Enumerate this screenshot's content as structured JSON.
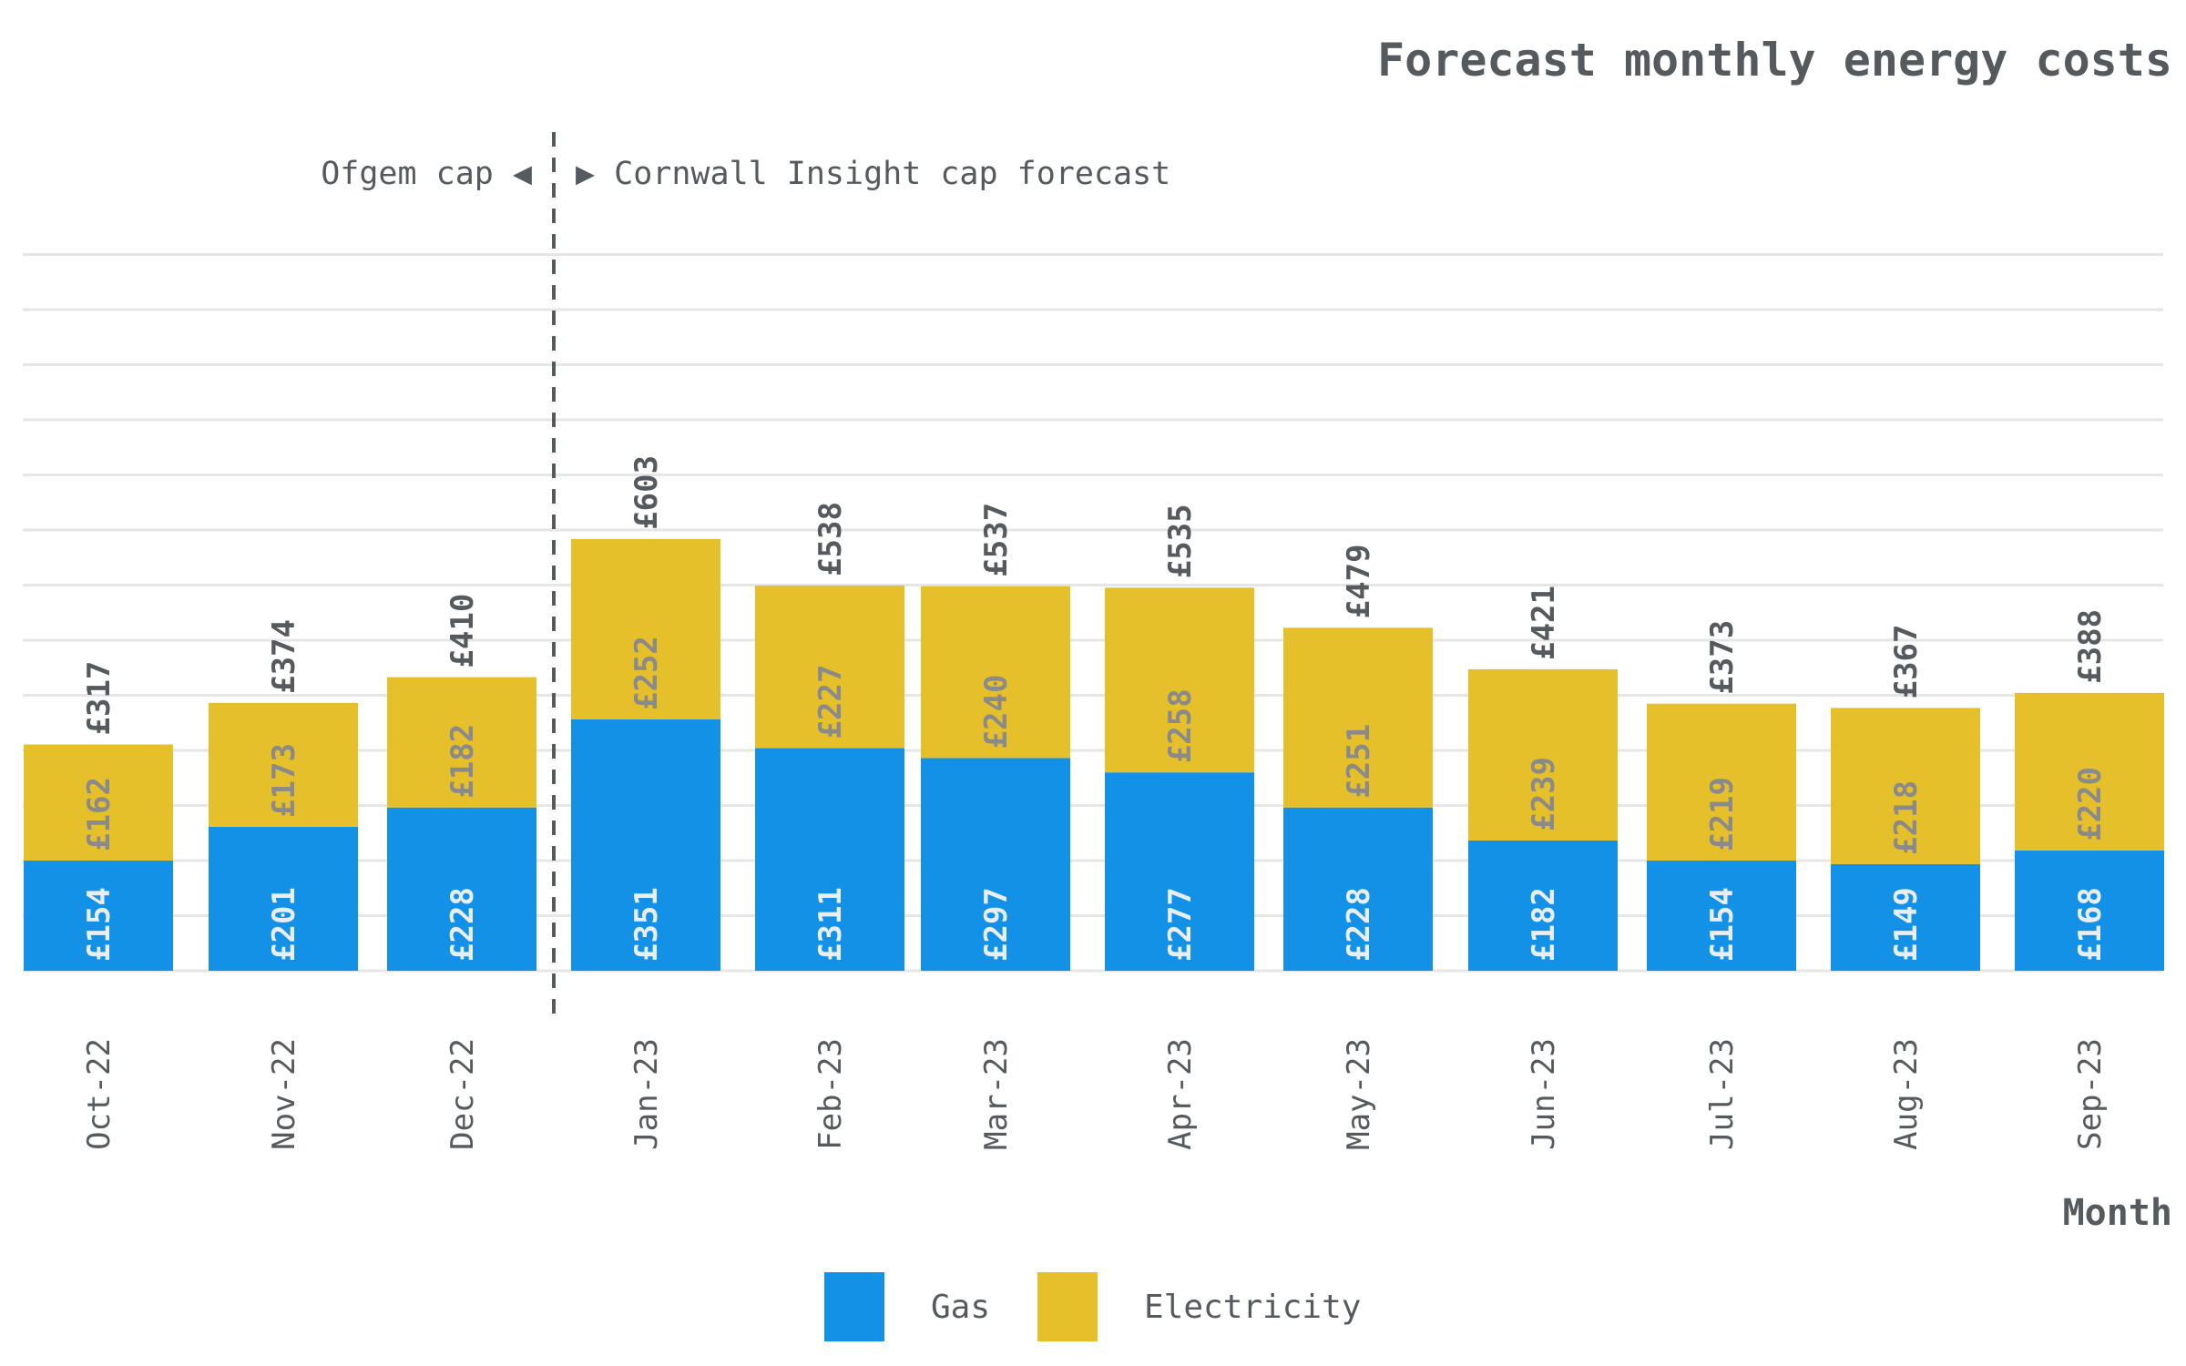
{
  "chart_data": {
    "type": "bar",
    "stacked": true,
    "title": "Forecast monthly energy costs",
    "xlabel": "Month",
    "ylabel": "",
    "ylim": [
      0,
      650
    ],
    "grid": true,
    "legend_position": "bottom-center",
    "categories": [
      "Oct-22",
      "Nov-22",
      "Dec-22",
      "Jan-23",
      "Feb-23",
      "Mar-23",
      "Apr-23",
      "May-23",
      "Jun-23",
      "Jul-23",
      "Aug-23",
      "Sep-23"
    ],
    "series": [
      {
        "name": "Gas",
        "color": "#1291e6",
        "values": [
          154,
          201,
          228,
          351,
          311,
          297,
          277,
          228,
          182,
          154,
          149,
          168
        ]
      },
      {
        "name": "Electricity",
        "color": "#e6c02a",
        "values": [
          162,
          173,
          182,
          252,
          227,
          240,
          258,
          251,
          239,
          219,
          218,
          220
        ]
      }
    ],
    "segment_labels": {
      "Gas": [
        "£154",
        "£201",
        "£228",
        "£351",
        "£311",
        "£297",
        "£277",
        "£228",
        "£182",
        "£154",
        "£149",
        "£168"
      ],
      "Electricity": [
        "£162",
        "£173",
        "£182",
        "£252",
        "£227",
        "£240",
        "£258",
        "£251",
        "£239",
        "£219",
        "£218",
        "£220"
      ]
    },
    "totals": [
      317,
      374,
      410,
      603,
      538,
      537,
      535,
      479,
      421,
      373,
      367,
      388
    ],
    "total_labels": [
      "£317",
      "£374",
      "£410",
      "£603",
      "£538",
      "£537",
      "£535",
      "£479",
      "£421",
      "£373",
      "£367",
      "£388"
    ],
    "annotations": {
      "divider_after": "Dec-22",
      "left_text": "Ofgem cap ◀",
      "right_text": "▶ Cornwall Insight cap forecast"
    }
  }
}
